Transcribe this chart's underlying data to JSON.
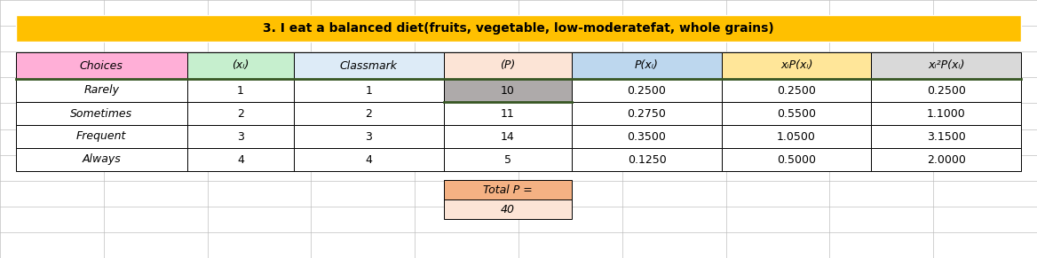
{
  "title": "3. I eat a balanced diet(fruits, vegetable, low-moderatefat, whole grains)",
  "title_bg": "#FFC000",
  "title_color": "#000000",
  "headers": [
    "Choices",
    "(xᵢ)",
    "Classmark",
    "(P)",
    "P(xᵢ)",
    "xᵢP(xᵢ)",
    "xᵢ²P(xᵢ)"
  ],
  "header_colors": [
    "#FFAFD7",
    "#C6EFCE",
    "#DDEBF7",
    "#FCE4D6",
    "#BDD7EE",
    "#FFE699",
    "#D9D9D9"
  ],
  "rows": [
    [
      "Rarely",
      "1",
      "1",
      "10",
      "0.2500",
      "0.2500",
      "0.2500"
    ],
    [
      "Sometimes",
      "2",
      "2",
      "11",
      "0.2750",
      "0.5500",
      "1.1000"
    ],
    [
      "Frequent",
      "3",
      "3",
      "14",
      "0.3500",
      "1.0500",
      "3.1500"
    ],
    [
      "Always",
      "4",
      "4",
      "5",
      "0.1250",
      "0.5000",
      "2.0000"
    ]
  ],
  "row_bg": "#FFFFFF",
  "p_col_rarely_bg": "#AEAAAA",
  "grid_color": "#000000",
  "spreadsheet_grid_color": "#BFBFBF",
  "dark_border_color": "#375623",
  "total_label": "Total P =",
  "total_value": "40",
  "total_bg": "#F4B183",
  "total_light_bg": "#FCE4D6",
  "col_widths_rel": [
    1.6,
    1.0,
    1.4,
    1.2,
    1.4,
    1.4,
    1.4
  ],
  "figsize": [
    11.68,
    2.91
  ],
  "dpi": 100
}
